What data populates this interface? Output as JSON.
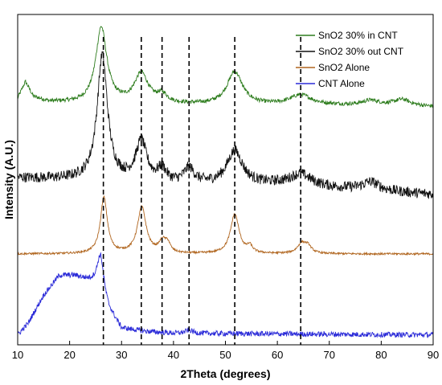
{
  "chart_data": {
    "type": "line",
    "title": "",
    "xlabel": "2Theta (degrees)",
    "ylabel": "Intensity (A.U.)",
    "xlim": [
      10,
      90
    ],
    "ylim": [
      0,
      1
    ],
    "x_ticks": [
      "10",
      "20",
      "30",
      "40",
      "50",
      "60",
      "70",
      "80",
      "90"
    ],
    "grid": false,
    "legend_position": "top-right",
    "reference_lines_x": [
      26.5,
      33.8,
      37.8,
      43.0,
      51.8,
      64.5
    ],
    "series": [
      {
        "name": "SnO2 30% in CNT",
        "color": "#2e7d1e",
        "offset": 0.71,
        "noise": 0.006,
        "baseline_points": [
          [
            10,
            0.035
          ],
          [
            11.5,
            0.085
          ],
          [
            13,
            0.04
          ],
          [
            16,
            0.025
          ],
          [
            22,
            0.02
          ],
          [
            50,
            0.015
          ],
          [
            70,
            0.015
          ],
          [
            90,
            0.01
          ]
        ],
        "peaks": [
          {
            "center": 26.1,
            "height": 0.23,
            "width": 1.3
          },
          {
            "center": 33.8,
            "height": 0.09,
            "width": 1.6
          },
          {
            "center": 37.8,
            "height": 0.025,
            "width": 1.2
          },
          {
            "center": 51.8,
            "height": 0.1,
            "width": 1.8
          },
          {
            "center": 64.5,
            "height": 0.03,
            "width": 2.5
          },
          {
            "center": 78.0,
            "height": 0.015,
            "width": 2.0
          },
          {
            "center": 84.0,
            "height": 0.02,
            "width": 2.0
          }
        ]
      },
      {
        "name": "SnO2 30% out CNT",
        "color": "#111111",
        "offset": 0.455,
        "noise": 0.016,
        "baseline_points": [
          [
            10,
            0.05
          ],
          [
            20,
            0.045
          ],
          [
            40,
            0.03
          ],
          [
            60,
            0.03
          ],
          [
            80,
            0.01
          ],
          [
            90,
            0.0
          ]
        ],
        "peaks": [
          {
            "center": 26.3,
            "height": 0.38,
            "width": 1.2
          },
          {
            "center": 33.8,
            "height": 0.12,
            "width": 1.3
          },
          {
            "center": 37.8,
            "height": 0.04,
            "width": 1.0
          },
          {
            "center": 43.0,
            "height": 0.045,
            "width": 1.2
          },
          {
            "center": 51.8,
            "height": 0.1,
            "width": 1.8
          },
          {
            "center": 64.5,
            "height": 0.035,
            "width": 2.5
          },
          {
            "center": 78.0,
            "height": 0.025,
            "width": 2.0
          }
        ]
      },
      {
        "name": "SnO2 Alone",
        "color": "#b0651e",
        "offset": 0.275,
        "noise": 0.003,
        "baseline_points": [
          [
            10,
            0.0
          ],
          [
            90,
            0.0
          ]
        ],
        "peaks": [
          {
            "center": 26.6,
            "height": 0.17,
            "width": 0.8
          },
          {
            "center": 33.9,
            "height": 0.14,
            "width": 1.0
          },
          {
            "center": 37.9,
            "height": 0.035,
            "width": 0.8
          },
          {
            "center": 38.9,
            "height": 0.025,
            "width": 0.6
          },
          {
            "center": 51.8,
            "height": 0.12,
            "width": 1.0
          },
          {
            "center": 54.7,
            "height": 0.02,
            "width": 0.6
          },
          {
            "center": 64.7,
            "height": 0.03,
            "width": 1.0
          },
          {
            "center": 65.9,
            "height": 0.02,
            "width": 0.8
          }
        ]
      },
      {
        "name": "CNT Alone",
        "color": "#2a2ad8",
        "offset": 0.03,
        "noise": 0.008,
        "baseline_points": [
          [
            10,
            0.0
          ],
          [
            12,
            0.035
          ],
          [
            15,
            0.12
          ],
          [
            18,
            0.18
          ],
          [
            21,
            0.18
          ],
          [
            24,
            0.165
          ],
          [
            25.5,
            0.16
          ],
          [
            27.5,
            0.08
          ],
          [
            30,
            0.02
          ],
          [
            35,
            0.01
          ],
          [
            40,
            0.005
          ],
          [
            90,
            0.0
          ]
        ],
        "peaks": [
          {
            "center": 26.0,
            "height": 0.1,
            "width": 0.7
          },
          {
            "center": 43.0,
            "height": 0.01,
            "width": 0.8
          }
        ]
      }
    ]
  }
}
